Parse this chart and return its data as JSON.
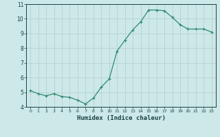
{
  "x": [
    0,
    1,
    2,
    3,
    4,
    5,
    6,
    7,
    8,
    9,
    10,
    11,
    12,
    13,
    14,
    15,
    16,
    17,
    18,
    19,
    20,
    21,
    22,
    23
  ],
  "y": [
    5.1,
    4.9,
    4.75,
    4.9,
    4.7,
    4.65,
    4.45,
    4.2,
    4.6,
    5.35,
    5.9,
    7.8,
    8.55,
    9.25,
    9.8,
    10.6,
    10.6,
    10.55,
    10.1,
    9.6,
    9.3,
    9.3,
    9.3,
    9.1
  ],
  "xlabel": "Humidex (Indice chaleur)",
  "line_color": "#2e8b6e",
  "marker": "+",
  "bg_color": "#cce8e8",
  "grid_color": "#b8d0d0",
  "tick_color": "#1a4040",
  "axis_color": "#1a4040",
  "ylim": [
    4.0,
    11.0
  ],
  "xlim": [
    -0.5,
    23.5
  ],
  "yticks": [
    4,
    5,
    6,
    7,
    8,
    9,
    10,
    11
  ],
  "xticks": [
    0,
    1,
    2,
    3,
    4,
    5,
    6,
    7,
    8,
    9,
    10,
    11,
    12,
    13,
    14,
    15,
    16,
    17,
    18,
    19,
    20,
    21,
    22,
    23
  ]
}
